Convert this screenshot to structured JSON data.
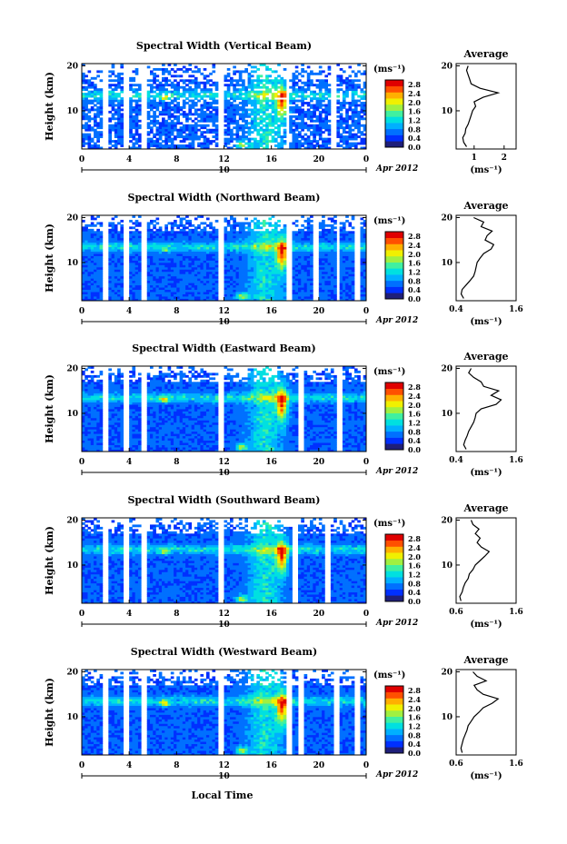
{
  "figure": {
    "xlabel": "Local Time",
    "date_label": "Apr 2012",
    "day_label": "10"
  },
  "colorbar": {
    "unit": "(ms⁻¹)",
    "ticks": [
      "0.0",
      "0.4",
      "0.8",
      "1.2",
      "1.6",
      "2.0",
      "2.4",
      "2.8"
    ],
    "range": [
      0.0,
      3.0
    ],
    "colormap": [
      "#1f1f7a",
      "#0030ff",
      "#0070ff",
      "#00b0ff",
      "#00e0e0",
      "#40f0a0",
      "#a0f040",
      "#f0f000",
      "#ffb000",
      "#ff5000",
      "#e00000"
    ]
  },
  "panels": [
    {
      "title": "Spectral Width (Vertical Beam)",
      "ylabel": "Height (km)",
      "yticks": [
        "10",
        "20"
      ],
      "xticks": [
        "0",
        "4",
        "8",
        "12",
        "16",
        "20",
        "0"
      ],
      "avg_title": "Average",
      "avg_xticks": [
        "1",
        "2"
      ],
      "avg_xrange": [
        0.4,
        2.4
      ],
      "avg_yticks": [
        "10",
        "20"
      ],
      "avg_xlabel": "(ms⁻¹)"
    },
    {
      "title": "Spectral Width (Northward Beam)",
      "ylabel": "Height (km)",
      "yticks": [
        "10",
        "20"
      ],
      "xticks": [
        "0",
        "4",
        "8",
        "12",
        "16",
        "20",
        "0"
      ],
      "avg_title": "Average",
      "avg_xticks": [
        "0.4",
        "1.6"
      ],
      "avg_xrange": [
        0.4,
        1.6
      ],
      "avg_yticks": [
        "10",
        "20"
      ],
      "avg_xlabel": "(ms⁻¹)"
    },
    {
      "title": "Spectral Width (Eastward Beam)",
      "ylabel": "Height (km)",
      "yticks": [
        "10",
        "20"
      ],
      "xticks": [
        "0",
        "4",
        "8",
        "12",
        "16",
        "20",
        "0"
      ],
      "avg_title": "Average",
      "avg_xticks": [
        "0.4",
        "1.6"
      ],
      "avg_xrange": [
        0.4,
        1.6
      ],
      "avg_yticks": [
        "10",
        "20"
      ],
      "avg_xlabel": "(ms⁻¹)"
    },
    {
      "title": "Spectral Width (Southward Beam)",
      "ylabel": "Height (km)",
      "yticks": [
        "10",
        "20"
      ],
      "xticks": [
        "0",
        "4",
        "8",
        "12",
        "16",
        "20",
        "0"
      ],
      "avg_title": "Average",
      "avg_xticks": [
        "0.6",
        "1.6"
      ],
      "avg_xrange": [
        0.6,
        1.6
      ],
      "avg_yticks": [
        "10",
        "20"
      ],
      "avg_xlabel": "(ms⁻¹)"
    },
    {
      "title": "Spectral Width (Westward Beam)",
      "ylabel": "Height (km)",
      "yticks": [
        "10",
        "20"
      ],
      "xticks": [
        "0",
        "4",
        "8",
        "12",
        "16",
        "20",
        "0"
      ],
      "avg_title": "Average",
      "avg_xticks": [
        "0.6",
        "1.6"
      ],
      "avg_xrange": [
        0.6,
        1.6
      ],
      "avg_yticks": [
        "10",
        "20"
      ],
      "avg_xlabel": "(ms⁻¹)"
    }
  ],
  "chart_data": [
    {
      "type": "heatmap",
      "title": "Spectral Width (Vertical Beam)",
      "xlabel": "Local Time",
      "ylabel": "Height (km)",
      "xlim": [
        0,
        24
      ],
      "ylim": [
        1.5,
        20.5
      ],
      "z_unit": "ms⁻¹",
      "zlim": [
        0.0,
        3.0
      ],
      "data_gaps_hours": [
        [
          1.7,
          2.2
        ],
        [
          3.4,
          3.9
        ],
        [
          5.1,
          5.6
        ],
        [
          11.5,
          11.9
        ],
        [
          17.2,
          17.6
        ],
        [
          21.1,
          21.6
        ]
      ],
      "average_profile": {
        "xlim": [
          0.4,
          2.4
        ],
        "height_km": [
          2,
          3,
          4,
          5,
          6,
          7,
          8,
          9,
          10,
          11,
          12,
          13,
          14,
          15,
          16,
          17,
          18,
          19,
          20
        ],
        "width": [
          0.75,
          0.65,
          0.62,
          0.7,
          0.72,
          0.8,
          0.85,
          0.9,
          0.95,
          1.05,
          1.0,
          1.3,
          1.8,
          1.2,
          0.9,
          0.85,
          0.8,
          0.75,
          0.8
        ]
      }
    },
    {
      "type": "heatmap",
      "title": "Spectral Width (Northward Beam)",
      "xlabel": "Local Time",
      "ylabel": "Height (km)",
      "xlim": [
        0,
        24
      ],
      "ylim": [
        1.5,
        20.5
      ],
      "z_unit": "ms⁻¹",
      "zlim": [
        0.0,
        3.0
      ],
      "data_gaps_hours": [
        [
          1.7,
          2.2
        ],
        [
          3.4,
          3.9
        ],
        [
          5.1,
          5.6
        ],
        [
          11.5,
          11.9
        ],
        [
          17.3,
          17.7
        ],
        [
          19.4,
          19.9
        ],
        [
          21.4,
          21.8
        ],
        [
          23.0,
          23.4
        ]
      ],
      "average_profile": {
        "xlim": [
          0.4,
          1.6
        ],
        "height_km": [
          2,
          3,
          4,
          5,
          6,
          7,
          8,
          9,
          10,
          11,
          12,
          13,
          14,
          15,
          16,
          17,
          18,
          19,
          20
        ],
        "width": [
          0.55,
          0.5,
          0.52,
          0.6,
          0.68,
          0.75,
          0.78,
          0.8,
          0.82,
          0.88,
          0.95,
          1.1,
          1.15,
          0.98,
          1.02,
          1.12,
          0.9,
          0.95,
          0.75
        ]
      }
    },
    {
      "type": "heatmap",
      "title": "Spectral Width (Eastward Beam)",
      "xlabel": "Local Time",
      "ylabel": "Height (km)",
      "xlim": [
        0,
        24
      ],
      "ylim": [
        1.5,
        20.5
      ],
      "z_unit": "ms⁻¹",
      "zlim": [
        0.0,
        3.0
      ],
      "data_gaps_hours": [
        [
          1.7,
          2.2
        ],
        [
          3.4,
          3.9
        ],
        [
          5.1,
          5.6
        ],
        [
          11.5,
          11.9
        ],
        [
          18.3,
          18.8
        ],
        [
          21.5,
          21.9
        ]
      ],
      "average_profile": {
        "xlim": [
          0.4,
          1.6
        ],
        "height_km": [
          2,
          3,
          4,
          5,
          6,
          7,
          8,
          9,
          10,
          11,
          12,
          13,
          14,
          15,
          16,
          17,
          18,
          19,
          20
        ],
        "width": [
          0.6,
          0.55,
          0.58,
          0.62,
          0.65,
          0.7,
          0.75,
          0.78,
          0.8,
          0.9,
          1.2,
          1.3,
          1.1,
          1.25,
          0.95,
          0.9,
          0.75,
          0.65,
          0.7
        ]
      }
    },
    {
      "type": "heatmap",
      "title": "Spectral Width (Southward Beam)",
      "xlabel": "Local Time",
      "ylabel": "Height (km)",
      "xlim": [
        0,
        24
      ],
      "ylim": [
        1.5,
        20.5
      ],
      "z_unit": "ms⁻¹",
      "zlim": [
        0.0,
        3.0
      ],
      "data_gaps_hours": [
        [
          1.7,
          2.2
        ],
        [
          3.4,
          3.9
        ],
        [
          5.1,
          5.6
        ],
        [
          11.5,
          11.9
        ],
        [
          17.8,
          18.2
        ],
        [
          20.5,
          21.0
        ]
      ],
      "average_profile": {
        "xlim": [
          0.6,
          1.6
        ],
        "height_km": [
          2,
          3,
          4,
          5,
          6,
          7,
          8,
          9,
          10,
          11,
          12,
          13,
          14,
          15,
          16,
          17,
          18,
          19,
          20
        ],
        "width": [
          0.68,
          0.66,
          0.7,
          0.72,
          0.75,
          0.8,
          0.82,
          0.88,
          0.92,
          1.0,
          1.08,
          1.15,
          1.02,
          0.95,
          1.0,
          0.92,
          0.98,
          0.88,
          0.85
        ]
      }
    },
    {
      "type": "heatmap",
      "title": "Spectral Width (Westward Beam)",
      "xlabel": "Local Time",
      "ylabel": "Height (km)",
      "xlim": [
        0,
        24
      ],
      "ylim": [
        1.5,
        20.5
      ],
      "z_unit": "ms⁻¹",
      "zlim": [
        0.0,
        3.0
      ],
      "data_gaps_hours": [
        [
          1.7,
          2.2
        ],
        [
          3.4,
          3.9
        ],
        [
          5.1,
          5.6
        ],
        [
          11.5,
          11.9
        ],
        [
          17.3,
          17.7
        ],
        [
          18.3,
          18.7
        ],
        [
          21.3,
          21.8
        ],
        [
          23.0,
          23.4
        ]
      ],
      "average_profile": {
        "xlim": [
          0.6,
          1.6
        ],
        "height_km": [
          2,
          3,
          4,
          5,
          6,
          7,
          8,
          9,
          10,
          11,
          12,
          13,
          14,
          15,
          16,
          17,
          18,
          19,
          20
        ],
        "width": [
          0.7,
          0.68,
          0.7,
          0.72,
          0.75,
          0.78,
          0.8,
          0.85,
          0.9,
          0.98,
          1.05,
          1.2,
          1.3,
          1.05,
          0.95,
          0.9,
          1.1,
          0.95,
          0.88
        ]
      }
    }
  ]
}
